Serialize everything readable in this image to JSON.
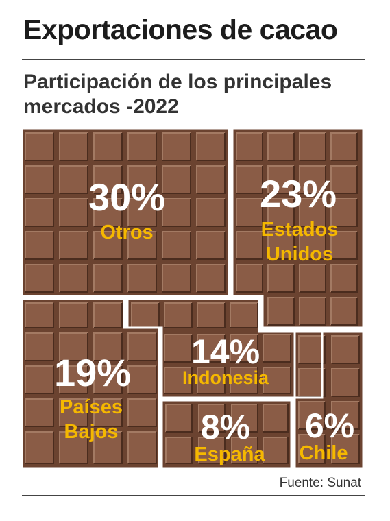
{
  "header": {
    "title": "Exportaciones de cacao",
    "subtitle_line1": "Participación de los principales",
    "subtitle_line2": "mercados -2022"
  },
  "footer": {
    "source": "Fuente: Sunat"
  },
  "colors": {
    "chocolate": "#6b4330",
    "square": "#8a5c46",
    "highlight": "#a37a63",
    "shadow": "#4a2c1e",
    "label": "#f5b800",
    "value": "#ffffff"
  },
  "chart_data": {
    "type": "treemap",
    "unit": "%",
    "categories": [
      "Otros",
      "Estados Unidos",
      "Países Bajos",
      "Indonesia",
      "España",
      "Chile"
    ],
    "values": [
      30,
      23,
      19,
      14,
      8,
      6
    ],
    "category_lines": [
      [
        "Otros"
      ],
      [
        "Estados",
        "Unidos"
      ],
      [
        "Países",
        "Bajos"
      ],
      [
        "Indonesia"
      ],
      [
        "España"
      ],
      [
        "Chile"
      ]
    ],
    "value_labels": [
      "30%",
      "23%",
      "19%",
      "14%",
      "8%",
      "6%"
    ]
  }
}
